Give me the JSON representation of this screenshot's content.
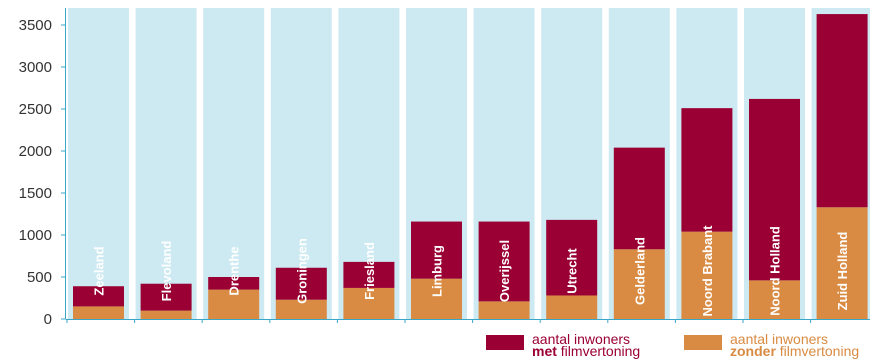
{
  "chart_data": {
    "type": "bar",
    "stacked": true,
    "categories": [
      "Zeeland",
      "Flevoland",
      "Drenthe",
      "Groningen",
      "Friesland",
      "Limburg",
      "Overijssel",
      "Utrecht",
      "Gelderland",
      "Noord Brabant",
      "Noord Holland",
      "Zuid Holland"
    ],
    "series": [
      {
        "name": "aantal inwoners zonder filmvertoning",
        "color": "#d98b43",
        "values": [
          150,
          100,
          350,
          230,
          370,
          480,
          210,
          280,
          830,
          1040,
          460,
          1330
        ]
      },
      {
        "name": "aantal inwoners met filmvertoning",
        "color": "#9a0033",
        "values": [
          240,
          320,
          150,
          380,
          310,
          680,
          950,
          900,
          1210,
          1470,
          2160,
          2300
        ]
      }
    ],
    "background_color": "#cdeaf2",
    "yticks": [
      0,
      500,
      1000,
      1500,
      2000,
      2500,
      3000,
      3500
    ],
    "ylim": [
      0,
      3650
    ],
    "grid": false,
    "legend_position": "bottom-right"
  },
  "legend": {
    "met": {
      "line1": "aantal inwoners",
      "bold": "met",
      "rest": " filmvertoning",
      "color": "#9a0033"
    },
    "zonder": {
      "line1": "aantal inwoners",
      "bold": "zonder",
      "rest": " filmvertoning",
      "color": "#d98b43"
    }
  }
}
